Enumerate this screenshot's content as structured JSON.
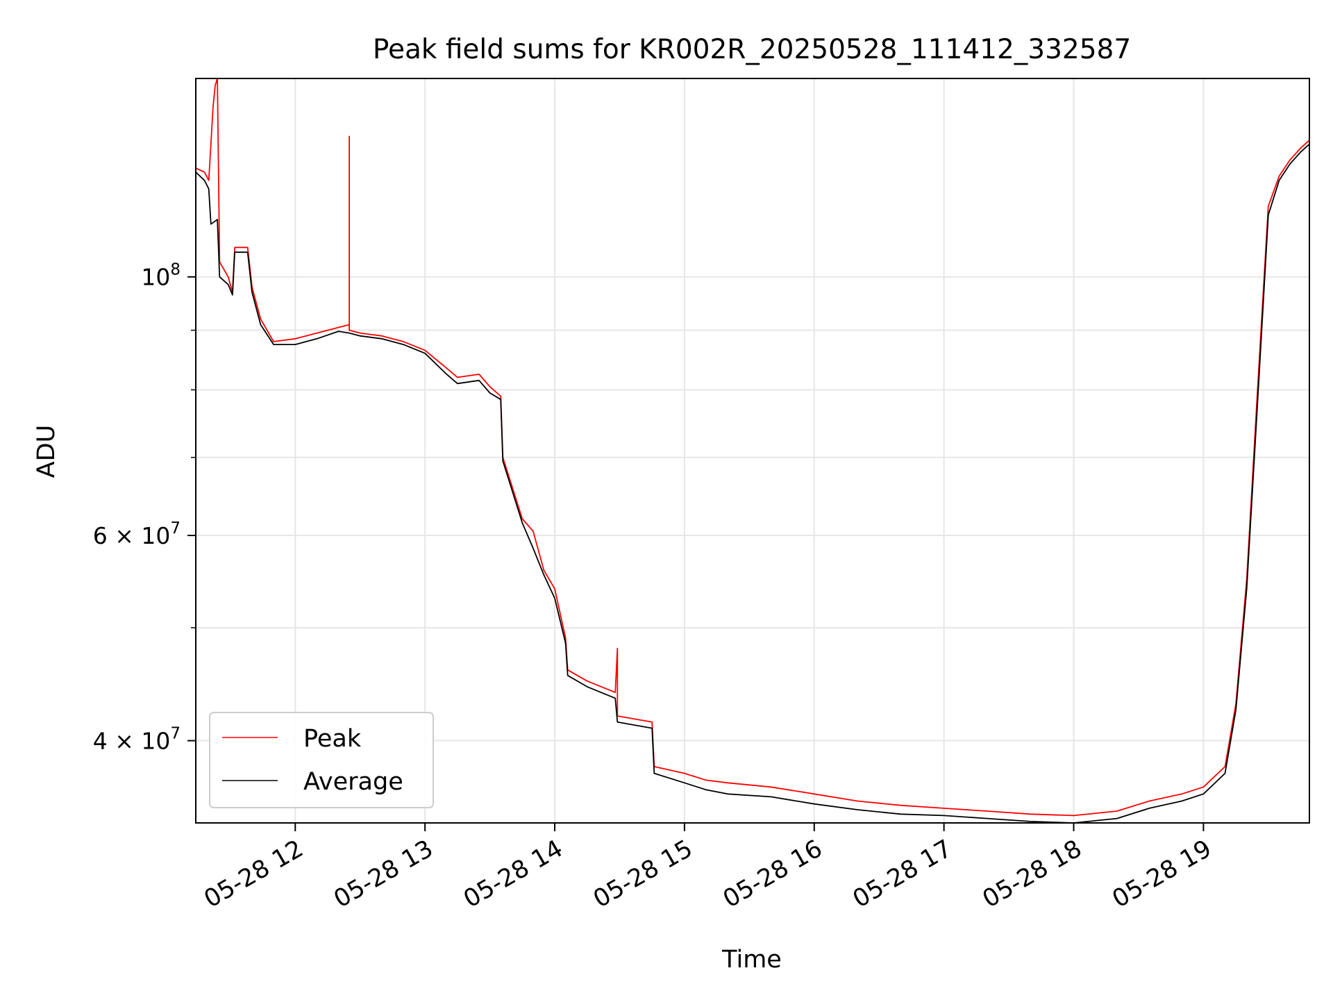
{
  "chart_data": {
    "type": "line",
    "title": "Peak field sums for KR002R_20250528_111412_332587",
    "xlabel": "Time",
    "ylabel": "ADU",
    "x_range": [
      "2025-05-28 11:14",
      "2025-05-28 19:49"
    ],
    "y_scale": "log",
    "ylim": [
      34000000,
      148000000
    ],
    "x_ticks": [
      {
        "t": "2025-05-28 12:00",
        "label": "05-28 12"
      },
      {
        "t": "2025-05-28 13:00",
        "label": "05-28 13"
      },
      {
        "t": "2025-05-28 14:00",
        "label": "05-28 14"
      },
      {
        "t": "2025-05-28 15:00",
        "label": "05-28 15"
      },
      {
        "t": "2025-05-28 16:00",
        "label": "05-28 16"
      },
      {
        "t": "2025-05-28 17:00",
        "label": "05-28 17"
      },
      {
        "t": "2025-05-28 18:00",
        "label": "05-28 18"
      },
      {
        "t": "2025-05-28 19:00",
        "label": "05-28 19"
      }
    ],
    "y_major_ticks": [
      {
        "value": 100000000,
        "base": "10",
        "exp": "8"
      },
      {
        "value": 60000000,
        "base": "6 × 10",
        "exp": "7"
      },
      {
        "value": 40000000,
        "base": "4 × 10",
        "exp": "7"
      }
    ],
    "y_minor_ticks": [
      90000000,
      80000000,
      70000000,
      50000000
    ],
    "grid": true,
    "legend_position": "lower-left",
    "series": [
      {
        "name": "Peak",
        "color": "#ff0000",
        "points": [
          [
            "2025-05-28 11:14",
            124000000
          ],
          [
            "2025-05-28 11:18",
            123000000
          ],
          [
            "2025-05-28 11:20",
            121000000
          ],
          [
            "2025-05-28 11:21",
            130000000
          ],
          [
            "2025-05-28 11:22",
            140000000
          ],
          [
            "2025-05-28 11:23",
            146000000
          ],
          [
            "2025-05-28 11:24",
            148000000
          ],
          [
            "2025-05-28 11:25",
            103000000
          ],
          [
            "2025-05-28 11:29",
            100000000
          ],
          [
            "2025-05-28 11:31",
            97000000
          ],
          [
            "2025-05-28 11:32",
            106000000
          ],
          [
            "2025-05-28 11:38",
            106000000
          ],
          [
            "2025-05-28 11:40",
            98000000
          ],
          [
            "2025-05-28 11:44",
            92000000
          ],
          [
            "2025-05-28 11:50",
            88000000
          ],
          [
            "2025-05-28 12:00",
            88500000
          ],
          [
            "2025-05-28 12:10",
            89500000
          ],
          [
            "2025-05-28 12:20",
            90500000
          ],
          [
            "2025-05-28 12:25",
            91000000
          ],
          [
            "2025-05-28 12:25",
            132000000
          ],
          [
            "2025-05-28 12:25",
            90000000
          ],
          [
            "2025-05-28 12:30",
            89500000
          ],
          [
            "2025-05-28 12:40",
            89000000
          ],
          [
            "2025-05-28 12:50",
            88000000
          ],
          [
            "2025-05-28 13:00",
            86500000
          ],
          [
            "2025-05-28 13:10",
            83500000
          ],
          [
            "2025-05-28 13:15",
            82000000
          ],
          [
            "2025-05-28 13:25",
            82500000
          ],
          [
            "2025-05-28 13:30",
            80500000
          ],
          [
            "2025-05-28 13:35",
            79000000
          ],
          [
            "2025-05-28 13:36",
            70000000
          ],
          [
            "2025-05-28 13:45",
            62000000
          ],
          [
            "2025-05-28 13:50",
            60500000
          ],
          [
            "2025-05-28 13:55",
            56000000
          ],
          [
            "2025-05-28 14:00",
            54000000
          ],
          [
            "2025-05-28 14:05",
            49000000
          ],
          [
            "2025-05-28 14:06",
            46000000
          ],
          [
            "2025-05-28 14:15",
            45000000
          ],
          [
            "2025-05-28 14:28",
            44000000
          ],
          [
            "2025-05-28 14:29",
            48000000
          ],
          [
            "2025-05-28 14:29",
            42000000
          ],
          [
            "2025-05-28 14:45",
            41500000
          ],
          [
            "2025-05-28 14:46",
            38000000
          ],
          [
            "2025-05-28 15:00",
            37500000
          ],
          [
            "2025-05-28 15:10",
            37000000
          ],
          [
            "2025-05-28 15:20",
            36800000
          ],
          [
            "2025-05-28 15:40",
            36500000
          ],
          [
            "2025-05-28 16:00",
            36000000
          ],
          [
            "2025-05-28 16:20",
            35500000
          ],
          [
            "2025-05-28 16:40",
            35200000
          ],
          [
            "2025-05-28 17:00",
            35000000
          ],
          [
            "2025-05-28 17:20",
            34800000
          ],
          [
            "2025-05-28 17:40",
            34600000
          ],
          [
            "2025-05-28 18:00",
            34500000
          ],
          [
            "2025-05-28 18:20",
            34800000
          ],
          [
            "2025-05-28 18:35",
            35500000
          ],
          [
            "2025-05-28 18:50",
            36000000
          ],
          [
            "2025-05-28 19:00",
            36500000
          ],
          [
            "2025-05-28 19:10",
            38000000
          ],
          [
            "2025-05-28 19:15",
            43000000
          ],
          [
            "2025-05-28 19:20",
            55000000
          ],
          [
            "2025-05-28 19:25",
            80000000
          ],
          [
            "2025-05-28 19:30",
            115000000
          ],
          [
            "2025-05-28 19:35",
            122000000
          ],
          [
            "2025-05-28 19:40",
            126000000
          ],
          [
            "2025-05-28 19:45",
            129000000
          ],
          [
            "2025-05-28 19:49",
            131000000
          ]
        ]
      },
      {
        "name": "Average",
        "color": "#000000",
        "points": [
          [
            "2025-05-28 11:14",
            123000000
          ],
          [
            "2025-05-28 11:18",
            121000000
          ],
          [
            "2025-05-28 11:20",
            119000000
          ],
          [
            "2025-05-28 11:21",
            111000000
          ],
          [
            "2025-05-28 11:24",
            112000000
          ],
          [
            "2025-05-28 11:25",
            100000000
          ],
          [
            "2025-05-28 11:29",
            98500000
          ],
          [
            "2025-05-28 11:31",
            96500000
          ],
          [
            "2025-05-28 11:32",
            105000000
          ],
          [
            "2025-05-28 11:38",
            105000000
          ],
          [
            "2025-05-28 11:40",
            97000000
          ],
          [
            "2025-05-28 11:44",
            91000000
          ],
          [
            "2025-05-28 11:50",
            87500000
          ],
          [
            "2025-05-28 12:00",
            87500000
          ],
          [
            "2025-05-28 12:10",
            88500000
          ],
          [
            "2025-05-28 12:20",
            89800000
          ],
          [
            "2025-05-28 12:25",
            89500000
          ],
          [
            "2025-05-28 12:30",
            89000000
          ],
          [
            "2025-05-28 12:40",
            88500000
          ],
          [
            "2025-05-28 12:50",
            87500000
          ],
          [
            "2025-05-28 13:00",
            86000000
          ],
          [
            "2025-05-28 13:10",
            82500000
          ],
          [
            "2025-05-28 13:15",
            81000000
          ],
          [
            "2025-05-28 13:25",
            81500000
          ],
          [
            "2025-05-28 13:30",
            79500000
          ],
          [
            "2025-05-28 13:35",
            78500000
          ],
          [
            "2025-05-28 13:36",
            69500000
          ],
          [
            "2025-05-28 13:45",
            61500000
          ],
          [
            "2025-05-28 13:50",
            58500000
          ],
          [
            "2025-05-28 13:55",
            55500000
          ],
          [
            "2025-05-28 14:00",
            53000000
          ],
          [
            "2025-05-28 14:05",
            48500000
          ],
          [
            "2025-05-28 14:06",
            45500000
          ],
          [
            "2025-05-28 14:15",
            44500000
          ],
          [
            "2025-05-28 14:28",
            43500000
          ],
          [
            "2025-05-28 14:29",
            41500000
          ],
          [
            "2025-05-28 14:45",
            41000000
          ],
          [
            "2025-05-28 14:46",
            37500000
          ],
          [
            "2025-05-28 15:00",
            36800000
          ],
          [
            "2025-05-28 15:10",
            36300000
          ],
          [
            "2025-05-28 15:20",
            36000000
          ],
          [
            "2025-05-28 15:40",
            35800000
          ],
          [
            "2025-05-28 16:00",
            35300000
          ],
          [
            "2025-05-28 16:20",
            34900000
          ],
          [
            "2025-05-28 16:40",
            34600000
          ],
          [
            "2025-05-28 17:00",
            34500000
          ],
          [
            "2025-05-28 17:20",
            34300000
          ],
          [
            "2025-05-28 17:40",
            34100000
          ],
          [
            "2025-05-28 18:00",
            34000000
          ],
          [
            "2025-05-28 18:20",
            34300000
          ],
          [
            "2025-05-28 18:35",
            35000000
          ],
          [
            "2025-05-28 18:50",
            35500000
          ],
          [
            "2025-05-28 19:00",
            36000000
          ],
          [
            "2025-05-28 19:10",
            37500000
          ],
          [
            "2025-05-28 19:15",
            42500000
          ],
          [
            "2025-05-28 19:20",
            54000000
          ],
          [
            "2025-05-28 19:25",
            78000000
          ],
          [
            "2025-05-28 19:30",
            113000000
          ],
          [
            "2025-05-28 19:35",
            121000000
          ],
          [
            "2025-05-28 19:40",
            125000000
          ],
          [
            "2025-05-28 19:45",
            128000000
          ],
          [
            "2025-05-28 19:49",
            130000000
          ]
        ]
      }
    ]
  }
}
